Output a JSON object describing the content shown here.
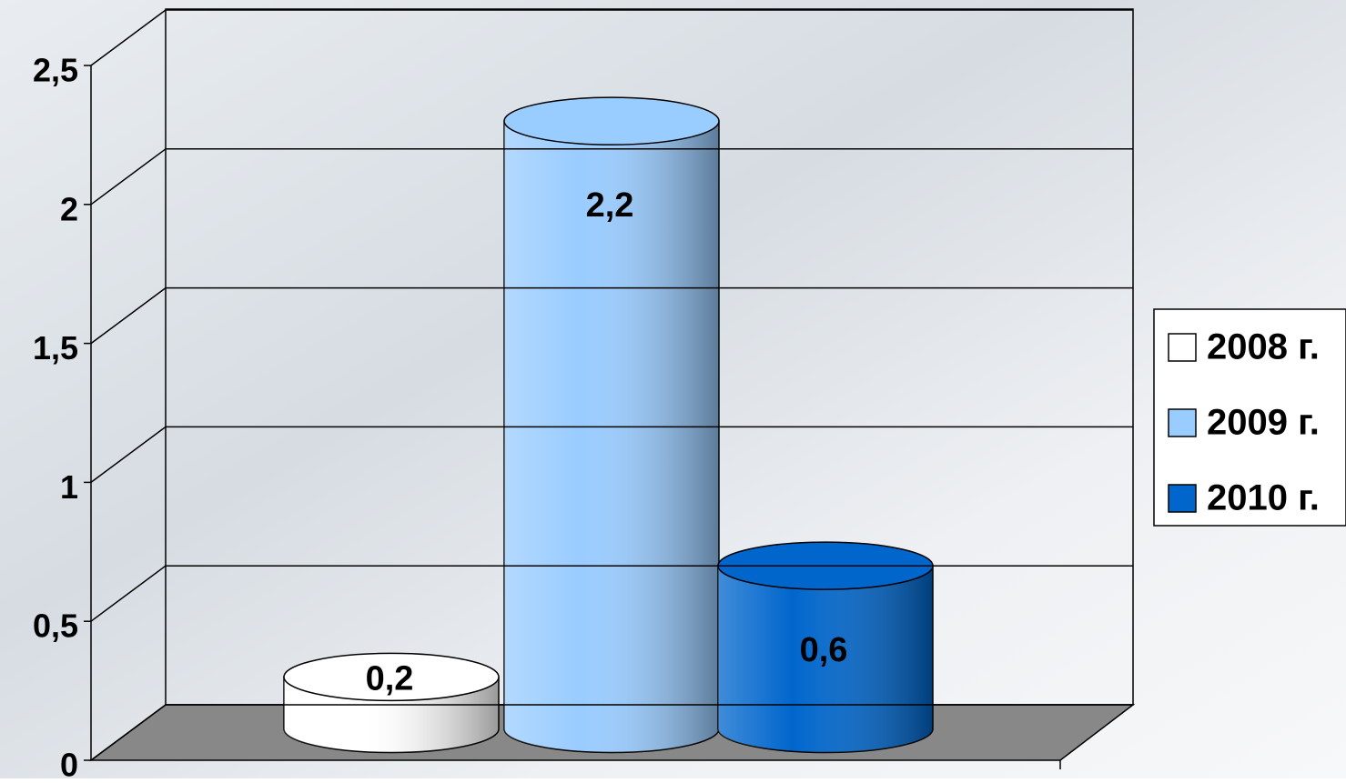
{
  "chart_data": {
    "type": "bar",
    "categories": [
      null
    ],
    "series": [
      {
        "name": "2008 г.",
        "color": "#ffffff",
        "values": [
          0.2
        ],
        "value_labels": [
          "0,2"
        ]
      },
      {
        "name": "2009 г.",
        "color": "#99ccff",
        "values": [
          2.2
        ],
        "value_labels": [
          "2,2"
        ]
      },
      {
        "name": "2010 г.",
        "color": "#0066cc",
        "values": [
          0.6
        ],
        "value_labels": [
          "0,6"
        ]
      }
    ],
    "ylim": [
      0,
      2.5
    ],
    "yticks": [
      0,
      {
        "value": 0.5,
        "label": "0,5"
      },
      1,
      {
        "value": 1.5,
        "label": "1,5"
      },
      2,
      {
        "value": 2.5,
        "label": "2,5"
      }
    ],
    "grid": true,
    "legend": "right"
  }
}
